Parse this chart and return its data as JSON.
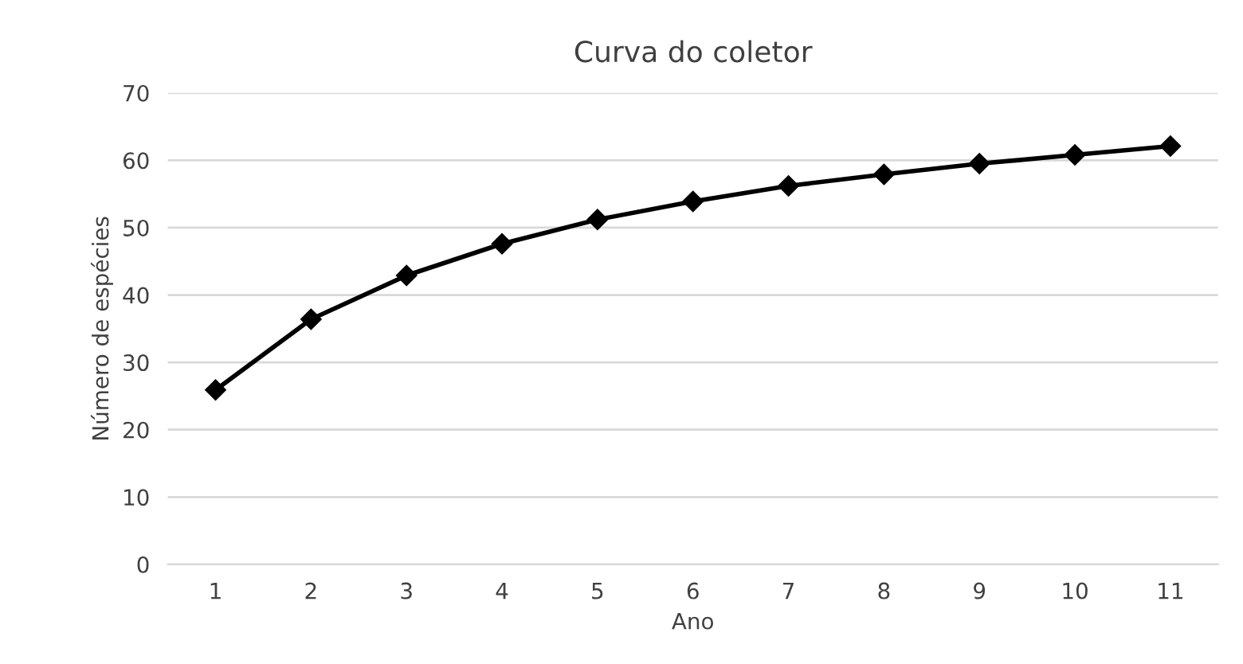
{
  "chart_data": {
    "type": "line",
    "title": "Curva do coletor",
    "xlabel": "Ano",
    "ylabel": "Número de espécies",
    "categories": [
      "1",
      "2",
      "3",
      "4",
      "5",
      "6",
      "7",
      "8",
      "9",
      "10",
      "11"
    ],
    "series": [
      {
        "color": "#000000",
        "values": [
          25.9,
          36.4,
          42.9,
          47.6,
          51.2,
          53.9,
          56.2,
          57.9,
          59.5,
          60.8,
          62.1
        ]
      }
    ],
    "ylim": [
      0,
      70
    ],
    "yticks": [
      0,
      10,
      20,
      30,
      40,
      50,
      60,
      70
    ],
    "grid": "y",
    "marker": "diamond",
    "line_style": "solid",
    "legend": false
  }
}
